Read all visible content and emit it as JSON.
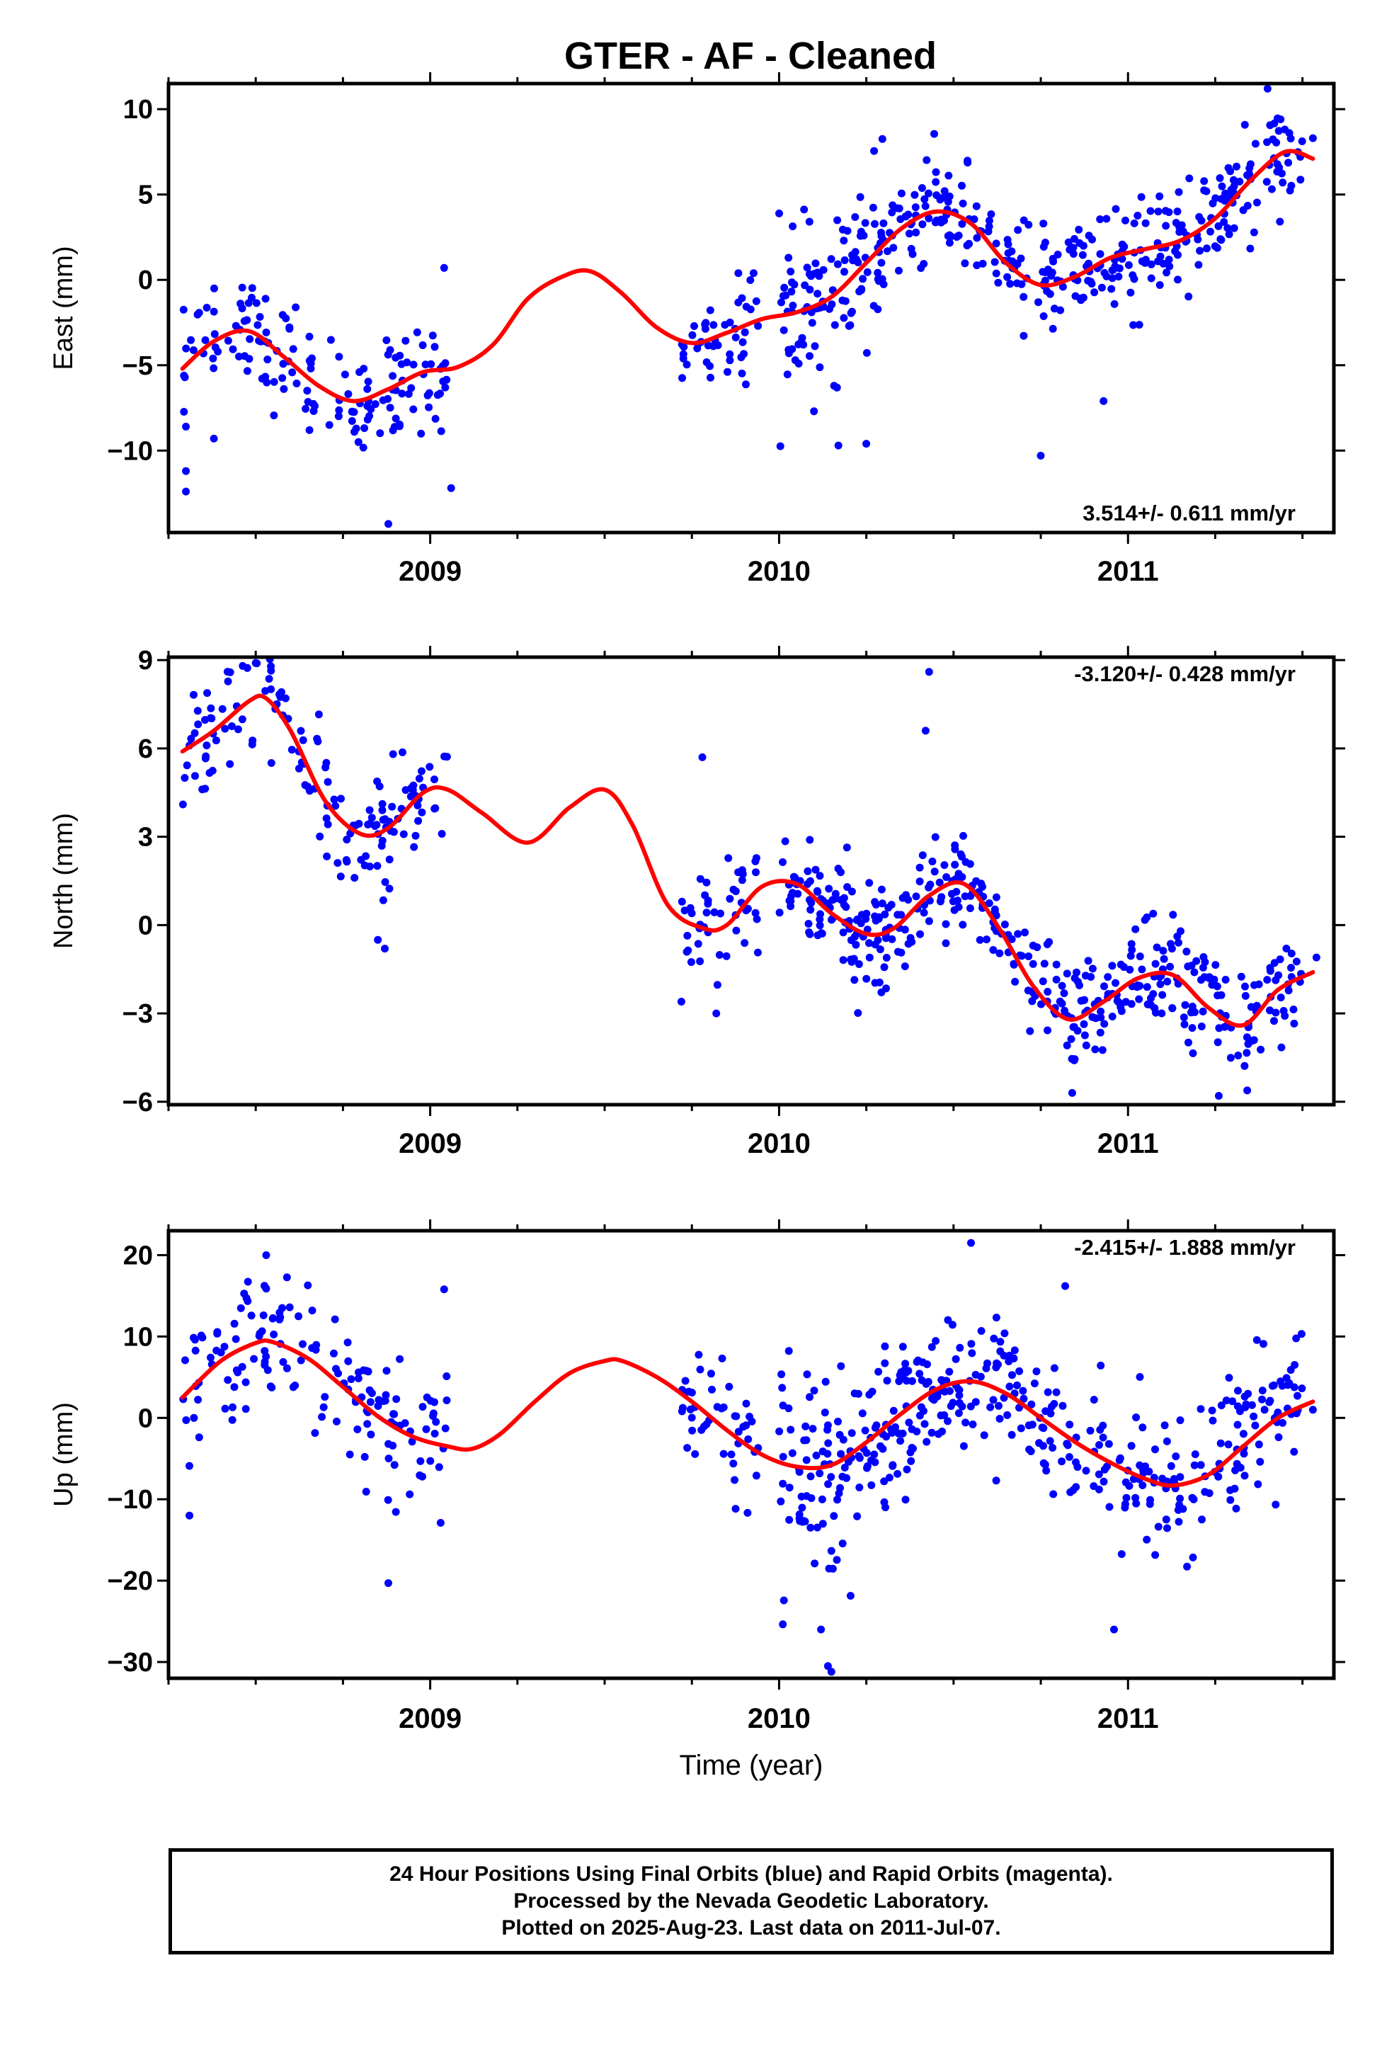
{
  "title": "GTER  - AF - Cleaned",
  "footer": {
    "line1": "24 Hour Positions Using Final Orbits (blue) and Rapid Orbits (magenta).",
    "line2": "Processed by the Nevada Geodetic Laboratory.",
    "line3": "Plotted on 2025-Aug-23. Last data on 2011-Jul-07."
  },
  "colors": {
    "points": "#0000ff",
    "model": "#ff0000",
    "axes": "#000000"
  },
  "chart_data": [
    {
      "type": "scatter",
      "panel": "east",
      "title": "",
      "ylabel": "East (mm)",
      "xlabel": "",
      "rate_text": "3.514+/- 0.611 mm/yr",
      "xlim": [
        2008.25,
        2011.59
      ],
      "ylim": [
        -14.8,
        11.5
      ],
      "yticks": [
        10,
        5,
        0,
        -5,
        -10
      ],
      "ytick_labels": [
        "10",
        "5",
        "0",
        "−5",
        "−10"
      ],
      "xticks": [
        2009,
        2010,
        2011
      ],
      "xtick_labels": [
        "2009",
        "2010",
        "2011"
      ],
      "data_gap": [
        2009.05,
        2009.72
      ],
      "model": {
        "x": [
          2008.29,
          2008.38,
          2008.48,
          2008.58,
          2008.68,
          2008.78,
          2008.88,
          2008.98,
          2009.08,
          2009.18,
          2009.28,
          2009.38,
          2009.46,
          2009.55,
          2009.65,
          2009.75,
          2009.85,
          2009.95,
          2010.05,
          2010.15,
          2010.25,
          2010.35,
          2010.45,
          2010.55,
          2010.65,
          2010.75,
          2010.85,
          2010.95,
          2011.05,
          2011.15,
          2011.25,
          2011.35,
          2011.45,
          2011.53
        ],
        "y": [
          -5.2,
          -3.6,
          -3.0,
          -4.5,
          -6.2,
          -7.1,
          -6.4,
          -5.4,
          -5.1,
          -3.8,
          -1.1,
          0.2,
          0.5,
          -0.8,
          -2.8,
          -3.7,
          -3.1,
          -2.3,
          -1.9,
          -1.0,
          1.0,
          3.0,
          4.0,
          3.3,
          1.0,
          -0.3,
          0.2,
          1.3,
          1.8,
          2.3,
          3.6,
          5.8,
          7.5,
          7.1
        ]
      },
      "points": {
        "segments": [
          {
            "x0": 2008.29,
            "x1": 2009.05,
            "n": 150,
            "spread": 1.6
          },
          {
            "x0": 2009.72,
            "x1": 2009.94,
            "n": 45,
            "spread": 1.5
          },
          {
            "x0": 2010.0,
            "x1": 2010.32,
            "n": 110,
            "spread": 2.2
          },
          {
            "x0": 2010.32,
            "x1": 2011.5,
            "n": 310,
            "spread": 1.5
          }
        ],
        "outliers": [
          {
            "x": 2008.3,
            "y": -12.4
          },
          {
            "x": 2008.3,
            "y": -11.2
          },
          {
            "x": 2008.3,
            "y": -8.6
          },
          {
            "x": 2008.38,
            "y": -9.3
          },
          {
            "x": 2008.88,
            "y": -14.3
          },
          {
            "x": 2009.06,
            "y": -12.2
          },
          {
            "x": 2009.04,
            "y": 0.7
          },
          {
            "x": 2010.17,
            "y": -9.7
          },
          {
            "x": 2010.25,
            "y": -9.6
          },
          {
            "x": 2010.75,
            "y": -10.3
          },
          {
            "x": 2010.93,
            "y": -7.1
          },
          {
            "x": 2011.4,
            "y": 11.2
          },
          {
            "x": 2011.53,
            "y": 8.3
          },
          {
            "x": 2010.1,
            "y": -7.7
          }
        ]
      }
    },
    {
      "type": "scatter",
      "panel": "north",
      "title": "",
      "ylabel": "North (mm)",
      "xlabel": "",
      "rate_text": "-3.120+/- 0.428 mm/yr",
      "xlim": [
        2008.25,
        2011.59
      ],
      "ylim": [
        -6.1,
        9.1
      ],
      "yticks": [
        9,
        6,
        3,
        0,
        -3,
        -6
      ],
      "ytick_labels": [
        "9",
        "6",
        "3",
        "0",
        "−3",
        "−6"
      ],
      "xticks": [
        2009,
        2010,
        2011
      ],
      "xtick_labels": [
        "2009",
        "2010",
        "2011"
      ],
      "data_gap": [
        2009.05,
        2009.72
      ],
      "model": {
        "x": [
          2008.29,
          2008.38,
          2008.48,
          2008.53,
          2008.6,
          2008.7,
          2008.8,
          2008.88,
          2008.98,
          2009.05,
          2009.15,
          2009.28,
          2009.4,
          2009.5,
          2009.58,
          2009.68,
          2009.78,
          2009.85,
          2009.95,
          2010.05,
          2010.15,
          2010.25,
          2010.33,
          2010.43,
          2010.53,
          2010.63,
          2010.73,
          2010.83,
          2010.93,
          2011.03,
          2011.13,
          2011.23,
          2011.33,
          2011.43,
          2011.53
        ],
        "y": [
          5.9,
          6.6,
          7.6,
          7.7,
          6.6,
          4.2,
          3.1,
          3.3,
          4.5,
          4.6,
          3.8,
          2.8,
          4.0,
          4.6,
          3.4,
          0.7,
          -0.1,
          0.0,
          1.3,
          1.4,
          0.4,
          -0.3,
          -0.1,
          1.0,
          1.4,
          -0.1,
          -2.1,
          -3.2,
          -2.6,
          -1.8,
          -1.7,
          -2.8,
          -3.4,
          -2.2,
          -1.6
        ]
      },
      "points": {
        "segments": [
          {
            "x0": 2008.29,
            "x1": 2009.05,
            "n": 150,
            "spread": 1.0
          },
          {
            "x0": 2009.72,
            "x1": 2009.94,
            "n": 45,
            "spread": 1.0
          },
          {
            "x0": 2010.0,
            "x1": 2010.32,
            "n": 110,
            "spread": 1.0
          },
          {
            "x0": 2010.32,
            "x1": 2011.5,
            "n": 310,
            "spread": 0.9
          }
        ],
        "outliers": [
          {
            "x": 2010.43,
            "y": 8.6
          },
          {
            "x": 2010.42,
            "y": 6.6
          },
          {
            "x": 2009.78,
            "y": 5.7
          },
          {
            "x": 2008.85,
            "y": -0.5
          },
          {
            "x": 2008.87,
            "y": -0.8
          },
          {
            "x": 2009.72,
            "y": -2.6
          },
          {
            "x": 2009.82,
            "y": -3.0
          },
          {
            "x": 2011.26,
            "y": -5.8
          },
          {
            "x": 2010.84,
            "y": -5.7
          },
          {
            "x": 2011.54,
            "y": -1.1
          },
          {
            "x": 2008.5,
            "y": 8.9
          }
        ]
      }
    },
    {
      "type": "scatter",
      "panel": "up",
      "title": "",
      "ylabel": "Up (mm)",
      "xlabel": "Time (year)",
      "rate_text": "-2.415+/- 1.888 mm/yr",
      "xlim": [
        2008.25,
        2011.59
      ],
      "ylim": [
        -32,
        23
      ],
      "yticks": [
        20,
        10,
        0,
        -10,
        -20,
        -30
      ],
      "ytick_labels": [
        "20",
        "10",
        "0",
        "−10",
        "−20",
        "−30"
      ],
      "xticks": [
        2009,
        2010,
        2011
      ],
      "xtick_labels": [
        "2009",
        "2010",
        "2011"
      ],
      "data_gap": [
        2009.05,
        2009.72
      ],
      "model": {
        "x": [
          2008.29,
          2008.4,
          2008.5,
          2008.55,
          2008.65,
          2008.75,
          2008.85,
          2008.95,
          2009.05,
          2009.12,
          2009.2,
          2009.3,
          2009.4,
          2009.5,
          2009.55,
          2009.65,
          2009.75,
          2009.85,
          2009.95,
          2010.05,
          2010.15,
          2010.25,
          2010.35,
          2010.45,
          2010.55,
          2010.65,
          2010.75,
          2010.85,
          2010.95,
          2011.05,
          2011.13,
          2011.23,
          2011.33,
          2011.43,
          2011.53
        ],
        "y": [
          2.5,
          7.0,
          9.2,
          9.3,
          7.3,
          3.8,
          0.2,
          -2.3,
          -3.5,
          -3.8,
          -2.0,
          2.0,
          5.5,
          7.0,
          7.0,
          5.0,
          2.0,
          -1.5,
          -4.5,
          -6.0,
          -5.8,
          -3.0,
          0.5,
          3.5,
          4.5,
          3.0,
          0.0,
          -3.0,
          -5.5,
          -7.5,
          -8.3,
          -7.0,
          -3.5,
          0.0,
          2.0
        ]
      },
      "points": {
        "segments": [
          {
            "x0": 2008.29,
            "x1": 2009.05,
            "n": 150,
            "spread": 4.0
          },
          {
            "x0": 2009.72,
            "x1": 2009.94,
            "n": 45,
            "spread": 4.0
          },
          {
            "x0": 2010.0,
            "x1": 2010.32,
            "n": 110,
            "spread": 6.0
          },
          {
            "x0": 2010.32,
            "x1": 2011.5,
            "n": 310,
            "spread": 4.5
          }
        ],
        "outliers": [
          {
            "x": 2010.55,
            "y": 21.5
          },
          {
            "x": 2008.53,
            "y": 20.0
          },
          {
            "x": 2010.12,
            "y": -26.0
          },
          {
            "x": 2010.14,
            "y": -30.5
          },
          {
            "x": 2010.15,
            "y": -31.2
          },
          {
            "x": 2008.88,
            "y": -20.3
          },
          {
            "x": 2009.04,
            "y": 15.8
          },
          {
            "x": 2010.96,
            "y": -26.0
          },
          {
            "x": 2009.03,
            "y": -12.9
          },
          {
            "x": 2008.31,
            "y": -12.0
          },
          {
            "x": 2010.82,
            "y": 16.2
          },
          {
            "x": 2011.53,
            "y": 1.0
          }
        ]
      }
    }
  ]
}
